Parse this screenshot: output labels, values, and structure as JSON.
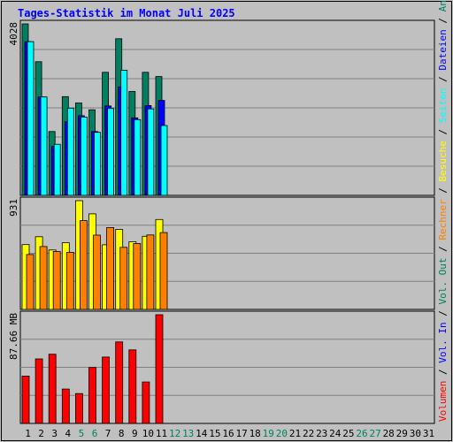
{
  "chart_data": {
    "type": "bar",
    "title": "Tages-Statistik im Monat Juli 2025",
    "days": [
      "1",
      "2",
      "3",
      "4",
      "5",
      "6",
      "7",
      "8",
      "9",
      "10",
      "11",
      "12",
      "13",
      "14",
      "15",
      "16",
      "17",
      "18",
      "19",
      "20",
      "21",
      "22",
      "23",
      "24",
      "25",
      "26",
      "27",
      "28",
      "29",
      "30",
      "31"
    ],
    "weekend_days": [
      "5",
      "6",
      "12",
      "13",
      "19",
      "20",
      "26",
      "27"
    ],
    "panels": [
      {
        "id": "requests",
        "max_label": "4028",
        "ymax": 4028,
        "series": [
          {
            "name": "Anfragen",
            "color": "#008060",
            "values": [
              4028,
              3140,
              1500,
              2320,
              2170,
              2010,
              2890,
              3680,
              2440,
              2890,
              2790,
              null,
              null,
              null,
              null,
              null,
              null,
              null,
              null,
              null,
              null,
              null,
              null,
              null,
              null,
              null,
              null,
              null,
              null,
              null,
              null
            ]
          },
          {
            "name": "Dateien",
            "color": "#0000ff",
            "values": [
              3610,
              2310,
              1150,
              1730,
              1870,
              1500,
              2100,
              2550,
              1820,
              2110,
              2230,
              null,
              null,
              null,
              null,
              null,
              null,
              null,
              null,
              null,
              null,
              null,
              null,
              null,
              null,
              null,
              null,
              null,
              null,
              null,
              null
            ]
          },
          {
            "name": "Seiten",
            "color": "#00ffff",
            "values": [
              3610,
              2310,
              1200,
              2050,
              1840,
              1480,
              2040,
              2940,
              1780,
              2030,
              1640,
              null,
              null,
              null,
              null,
              null,
              null,
              null,
              null,
              null,
              null,
              null,
              null,
              null,
              null,
              null,
              null,
              null,
              null,
              null,
              null
            ]
          }
        ]
      },
      {
        "id": "visits",
        "max_label": "931",
        "ymax": 931,
        "series": [
          {
            "name": "Besuche",
            "color": "#ffff00",
            "values": [
              555,
              622,
              509,
              571,
              931,
              818,
              553,
              685,
              579,
              626,
              770,
              null,
              null,
              null,
              null,
              null,
              null,
              null,
              null,
              null,
              null,
              null,
              null,
              null,
              null,
              null,
              null,
              null,
              null,
              null,
              null
            ]
          },
          {
            "name": "Rechner",
            "color": "#ff8000",
            "values": [
              470,
              538,
              496,
              489,
              760,
              636,
              701,
              531,
              564,
              637,
              658,
              null,
              null,
              null,
              null,
              null,
              null,
              null,
              null,
              null,
              null,
              null,
              null,
              null,
              null,
              null,
              null,
              null,
              null,
              null,
              null
            ]
          }
        ]
      },
      {
        "id": "volume",
        "max_label": "87.66 MB",
        "ymax": 87.66,
        "series": [
          {
            "name": "Volumen",
            "color": "#ff0000",
            "values": [
              38.2,
              52.0,
              55.8,
              27.7,
              24.1,
              45.1,
              53.5,
              65.7,
              59.3,
              33.4,
              87.66,
              null,
              null,
              null,
              null,
              null,
              null,
              null,
              null,
              null,
              null,
              null,
              null,
              null,
              null,
              null,
              null,
              null,
              null,
              null,
              null
            ]
          }
        ]
      }
    ],
    "legend": [
      {
        "text": "Volumen",
        "color": "#ff0000"
      },
      {
        "text": "Vol. In",
        "color": "#0000ff"
      },
      {
        "text": "Vol. Out",
        "color": "#008060"
      },
      {
        "text": "Rechner",
        "color": "#ff8000"
      },
      {
        "text": "Besuche",
        "color": "#ffff00"
      },
      {
        "text": "Seiten",
        "color": "#00ffff"
      },
      {
        "text": "Dateien",
        "color": "#0000ff"
      },
      {
        "text": "Anfragen",
        "color": "#008060"
      }
    ],
    "legend_separator": " / ",
    "grid": true,
    "colors": {
      "background": "#c0c0c0",
      "plot_background": "#c0c0c0",
      "title": "#0000ff",
      "weekday_label": "#000000",
      "weekend_label": "#008060",
      "gridline": "#808080"
    }
  }
}
